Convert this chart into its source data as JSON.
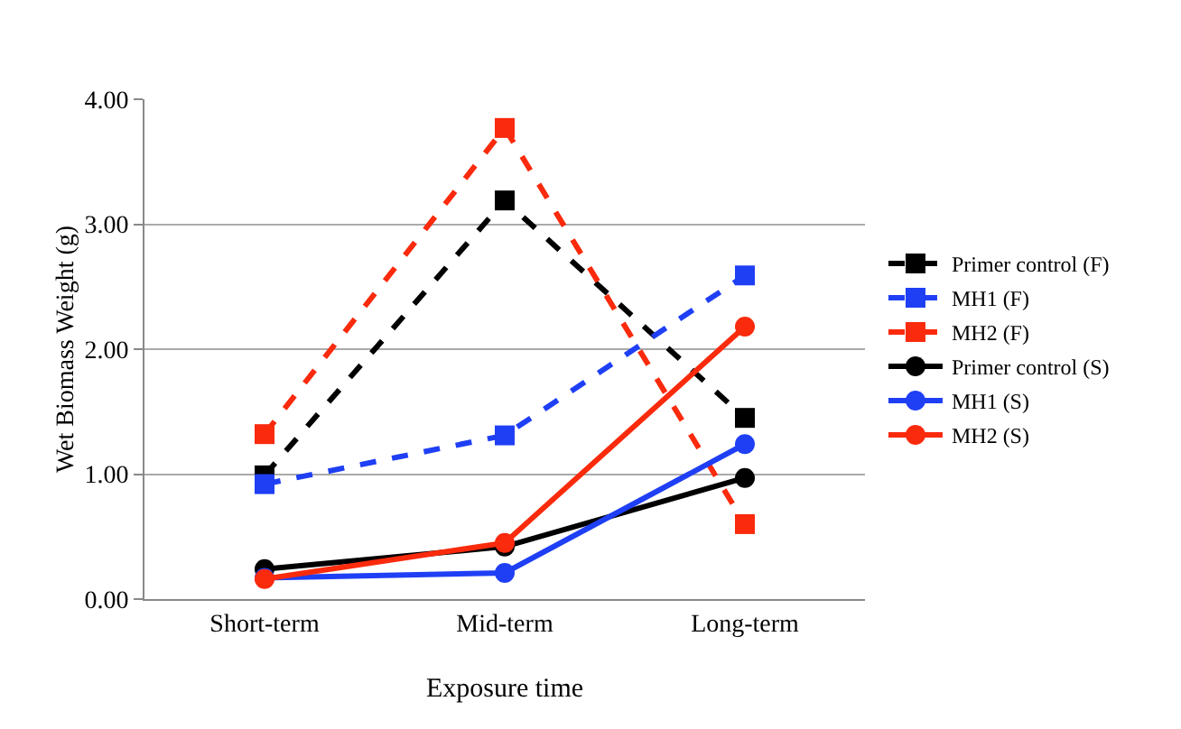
{
  "chart_data": {
    "type": "line",
    "xlabel": "Exposure time",
    "ylabel": "Wet Biomass Weight (g)",
    "categories": [
      "Short-term",
      "Mid-term",
      "Long-term"
    ],
    "series": [
      {
        "name": "Primer control (F)",
        "color": "#000000",
        "values": [
          0.99,
          3.19,
          1.45
        ],
        "marker": "square",
        "line_style": "dashed"
      },
      {
        "name": "MH1 (F)",
        "color": "#1f3ff5",
        "values": [
          0.92,
          1.31,
          2.59
        ],
        "marker": "square",
        "line_style": "dashed"
      },
      {
        "name": "MH2 (F)",
        "color": "#fa2a0c",
        "values": [
          1.32,
          3.77,
          0.6
        ],
        "marker": "square",
        "line_style": "dashed"
      },
      {
        "name": "Primer control (S)",
        "color": "#000000",
        "values": [
          0.24,
          0.42,
          0.97
        ],
        "marker": "circle",
        "line_style": "solid"
      },
      {
        "name": "MH1 (S)",
        "color": "#1f3ff5",
        "values": [
          0.17,
          0.21,
          1.24
        ],
        "marker": "circle",
        "line_style": "solid"
      },
      {
        "name": "MH2 (S)",
        "color": "#fa2a0c",
        "values": [
          0.16,
          0.45,
          2.18
        ],
        "marker": "circle",
        "line_style": "solid"
      }
    ],
    "ylim": [
      0,
      4
    ],
    "yticks": [
      {
        "value": 0,
        "label": "0.00"
      },
      {
        "value": 1,
        "label": "1.00"
      },
      {
        "value": 2,
        "label": "2.00"
      },
      {
        "value": 3,
        "label": "3.00"
      },
      {
        "value": 4,
        "label": "4.00"
      }
    ],
    "grid": "y",
    "legend": "right"
  }
}
